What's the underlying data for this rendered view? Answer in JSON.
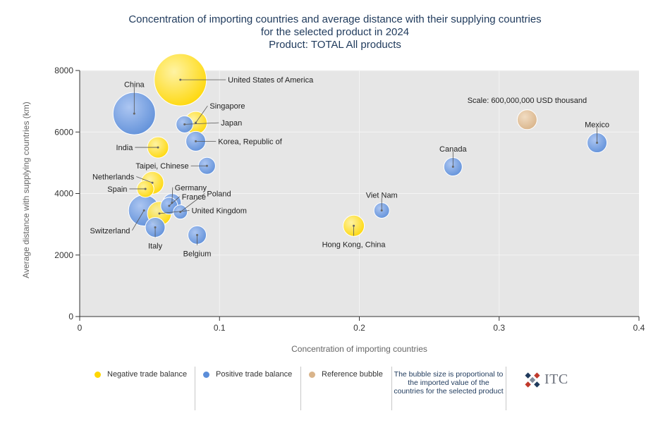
{
  "titles": [
    "Concentration of importing countries and average distance with their supplying countries",
    "for the selected product in 2024",
    "Product: TOTAL All products"
  ],
  "colors": {
    "negative": "#ffd700",
    "positive": "#5b8dd9",
    "reference": "#d9b48a",
    "plot_bg": "#e6e6e6",
    "title": "#1f3a5c"
  },
  "legend": {
    "negative_label": "Negative trade balance",
    "positive_label": "Positive trade balance",
    "reference_label": "Reference bubble",
    "note": "The bubble size is proportional to the imported value of the countries for the selected product"
  },
  "logo": {
    "text": "ITC",
    "icon": "itc-logo-icon"
  },
  "chart_data": {
    "type": "scatter",
    "subtype": "bubble",
    "xlabel": "Concentration of importing countries",
    "ylabel": "Average distance with supplying countries (km)",
    "xlim": [
      0,
      0.4
    ],
    "ylim": [
      0,
      8000
    ],
    "xticks": [
      "0",
      "0.1",
      "0.2",
      "0.3",
      "0.4"
    ],
    "yticks": [
      "0",
      "2000",
      "4000",
      "6000",
      "8000"
    ],
    "grid": true,
    "reference": {
      "label": "Scale: 600,000,000 USD thousand",
      "x": 0.32,
      "y": 6400,
      "size": 600000000
    },
    "points": [
      {
        "name": "United States of America",
        "x": 0.072,
        "y": 7700,
        "balance": "negative",
        "r": 37,
        "lx": 0.106,
        "ly": 7700,
        "anchor": "start"
      },
      {
        "name": "China",
        "x": 0.039,
        "y": 6600,
        "balance": "positive",
        "r": 30,
        "lx": 0.039,
        "ly": 7550,
        "anchor": "middle"
      },
      {
        "name": "Singapore",
        "x": 0.083,
        "y": 6300,
        "balance": "negative",
        "r": 16,
        "lx": 0.093,
        "ly": 6850,
        "anchor": "start"
      },
      {
        "name": "Japan",
        "x": 0.075,
        "y": 6250,
        "balance": "positive",
        "r": 12,
        "lx": 0.101,
        "ly": 6300,
        "anchor": "start"
      },
      {
        "name": "Korea, Republic of",
        "x": 0.083,
        "y": 5700,
        "balance": "positive",
        "r": 14,
        "lx": 0.099,
        "ly": 5700,
        "anchor": "start"
      },
      {
        "name": "India",
        "x": 0.056,
        "y": 5500,
        "balance": "negative",
        "r": 15,
        "lx": 0.038,
        "ly": 5500,
        "anchor": "end"
      },
      {
        "name": "Taipei, Chinese",
        "x": 0.091,
        "y": 4900,
        "balance": "positive",
        "r": 12,
        "lx": 0.078,
        "ly": 4900,
        "anchor": "end"
      },
      {
        "name": "Netherlands",
        "x": 0.052,
        "y": 4350,
        "balance": "negative",
        "r": 16,
        "lx": 0.039,
        "ly": 4550,
        "anchor": "end"
      },
      {
        "name": "Spain",
        "x": 0.047,
        "y": 4150,
        "balance": "negative",
        "r": 12,
        "lx": 0.034,
        "ly": 4150,
        "anchor": "end"
      },
      {
        "name": "Germany",
        "x": 0.066,
        "y": 3700,
        "balance": "positive",
        "r": 13,
        "lx": 0.068,
        "ly": 4200,
        "anchor": "start"
      },
      {
        "name": "France",
        "x": 0.064,
        "y": 3600,
        "balance": "positive",
        "r": 12,
        "lx": 0.073,
        "ly": 3900,
        "anchor": "start"
      },
      {
        "name": "Poland",
        "x": 0.072,
        "y": 3400,
        "balance": "positive",
        "r": 10,
        "lx": 0.091,
        "ly": 4000,
        "anchor": "start"
      },
      {
        "name": "United Kingdom",
        "x": 0.057,
        "y": 3350,
        "balance": "negative",
        "r": 17,
        "lx": 0.08,
        "ly": 3450,
        "anchor": "start"
      },
      {
        "name": "Switzerland",
        "x": 0.046,
        "y": 3450,
        "balance": "positive",
        "r": 22,
        "lx": 0.036,
        "ly": 2800,
        "anchor": "end"
      },
      {
        "name": "Italy",
        "x": 0.054,
        "y": 2900,
        "balance": "positive",
        "r": 14,
        "lx": 0.054,
        "ly": 2300,
        "anchor": "middle"
      },
      {
        "name": "Belgium",
        "x": 0.084,
        "y": 2650,
        "balance": "positive",
        "r": 13,
        "lx": 0.084,
        "ly": 2050,
        "anchor": "middle"
      },
      {
        "name": "Hong Kong, China",
        "x": 0.196,
        "y": 2950,
        "balance": "negative",
        "r": 15,
        "lx": 0.196,
        "ly": 2350,
        "anchor": "middle"
      },
      {
        "name": "Viet Nam",
        "x": 0.216,
        "y": 3450,
        "balance": "positive",
        "r": 11,
        "lx": 0.216,
        "ly": 3950,
        "anchor": "middle"
      },
      {
        "name": "Canada",
        "x": 0.267,
        "y": 4870,
        "balance": "positive",
        "r": 13,
        "lx": 0.267,
        "ly": 5450,
        "anchor": "middle"
      },
      {
        "name": "Mexico",
        "x": 0.37,
        "y": 5650,
        "balance": "positive",
        "r": 14,
        "lx": 0.37,
        "ly": 6250,
        "anchor": "middle"
      }
    ]
  }
}
